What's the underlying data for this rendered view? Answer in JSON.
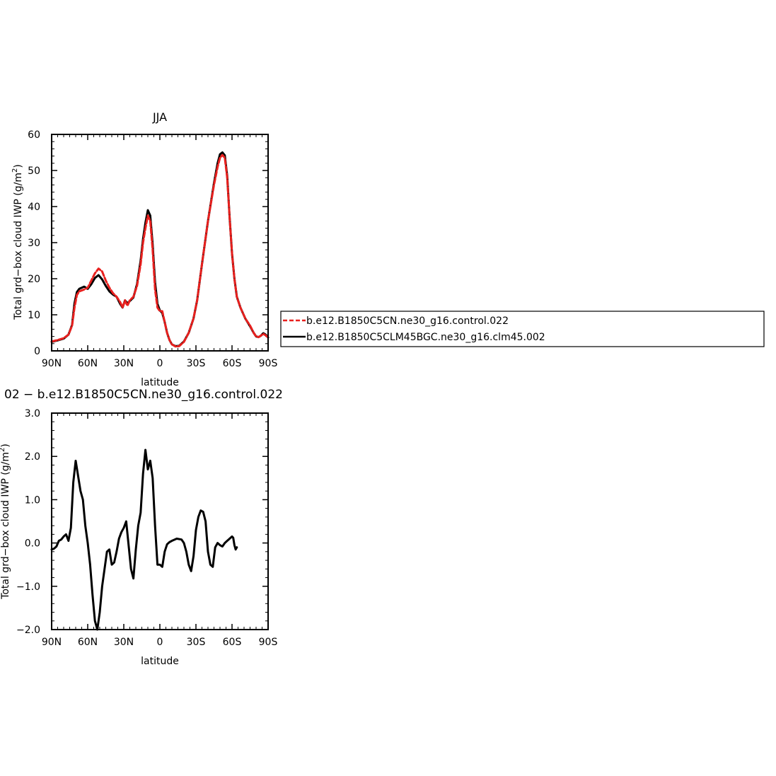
{
  "chart_data": [
    {
      "type": "line",
      "title": "JJA",
      "xlabel": "latitude",
      "ylabel": "Total grd−box cloud IWP (g/m²)",
      "xlim": [
        -90,
        90
      ],
      "ylim": [
        0,
        60
      ],
      "xticks": [
        -90,
        -60,
        -30,
        0,
        30,
        60,
        90
      ],
      "xtick_labels": [
        "90N",
        "60N",
        "30N",
        "0",
        "30S",
        "60S",
        "90S"
      ],
      "yticks": [
        0,
        10,
        20,
        30,
        40,
        50,
        60
      ],
      "ytick_labels": [
        "0",
        "10",
        "20",
        "30",
        "40",
        "50",
        "60"
      ],
      "legend_position": "right",
      "series": [
        {
          "name": "b.e12.B1850C5CN.ne30_g16.control.022",
          "color": "#e8201e",
          "dash": "dashed",
          "points": [
            [
              -90,
              2.6
            ],
            [
              -85,
              3.0
            ],
            [
              -80,
              3.5
            ],
            [
              -76,
              4.5
            ],
            [
              -73,
              7
            ],
            [
              -71,
              12
            ],
            [
              -69,
              15.5
            ],
            [
              -67,
              16.5
            ],
            [
              -63,
              17
            ],
            [
              -60,
              17.5
            ],
            [
              -57,
              19.5
            ],
            [
              -54,
              21.5
            ],
            [
              -51,
              22.8
            ],
            [
              -48,
              22
            ],
            [
              -45,
              19.5
            ],
            [
              -42,
              17.5
            ],
            [
              -39,
              16
            ],
            [
              -36,
              15
            ],
            [
              -33,
              13.5
            ],
            [
              -31,
              12
            ],
            [
              -29,
              14
            ],
            [
              -27,
              12.5
            ],
            [
              -25,
              14
            ],
            [
              -22,
              15
            ],
            [
              -19,
              18
            ],
            [
              -16,
              24
            ],
            [
              -14,
              30
            ],
            [
              -12,
              34
            ],
            [
              -10,
              37.5
            ],
            [
              -8,
              36
            ],
            [
              -6,
              28
            ],
            [
              -4,
              17
            ],
            [
              -2,
              12
            ],
            [
              0,
              11
            ],
            [
              2,
              11
            ],
            [
              4,
              8
            ],
            [
              6,
              5
            ],
            [
              8,
              3
            ],
            [
              10,
              1.8
            ],
            [
              13,
              1.2
            ],
            [
              16,
              1.3
            ],
            [
              20,
              2.5
            ],
            [
              24,
              5
            ],
            [
              28,
              9
            ],
            [
              31,
              14
            ],
            [
              35,
              24
            ],
            [
              40,
              36
            ],
            [
              45,
              46
            ],
            [
              48,
              51
            ],
            [
              50,
              53.5
            ],
            [
              52,
              54.3
            ],
            [
              54,
              53.5
            ],
            [
              56,
              48
            ],
            [
              58,
              37
            ],
            [
              60,
              27
            ],
            [
              62,
              20
            ],
            [
              64,
              15
            ],
            [
              67,
              12
            ],
            [
              71,
              9
            ],
            [
              75,
              7
            ],
            [
              78,
              5
            ],
            [
              80,
              4
            ],
            [
              82,
              3.8
            ],
            [
              84,
              4.2
            ],
            [
              86,
              4.7
            ],
            [
              88,
              4.3
            ],
            [
              90,
              3.7
            ]
          ]
        },
        {
          "name": "b.e12.B1850C5CLM45BGC.ne30_g16.clm45.002",
          "color": "#000000",
          "dash": "solid",
          "points": [
            [
              -90,
              2.5
            ],
            [
              -85,
              2.9
            ],
            [
              -80,
              3.4
            ],
            [
              -76,
              4.5
            ],
            [
              -73,
              7.2
            ],
            [
              -71,
              13.2
            ],
            [
              -69,
              16.3
            ],
            [
              -67,
              17.2
            ],
            [
              -63,
              17.8
            ],
            [
              -60,
              17.2
            ],
            [
              -57,
              18.5
            ],
            [
              -54,
              20.2
            ],
            [
              -51,
              21
            ],
            [
              -48,
              19.8
            ],
            [
              -45,
              18
            ],
            [
              -42,
              16.5
            ],
            [
              -39,
              15.6
            ],
            [
              -36,
              15
            ],
            [
              -33,
              13
            ],
            [
              -31,
              12
            ],
            [
              -29,
              14
            ],
            [
              -27,
              13.2
            ],
            [
              -25,
              13.8
            ],
            [
              -22,
              14.8
            ],
            [
              -19,
              18.5
            ],
            [
              -16,
              25
            ],
            [
              -14,
              31
            ],
            [
              -12,
              35.5
            ],
            [
              -10,
              39
            ],
            [
              -8,
              37.5
            ],
            [
              -6,
              29.5
            ],
            [
              -4,
              19
            ],
            [
              -2,
              13
            ],
            [
              0,
              11.2
            ],
            [
              2,
              10.5
            ],
            [
              4,
              8
            ],
            [
              6,
              5
            ],
            [
              8,
              3
            ],
            [
              10,
              1.8
            ],
            [
              13,
              1.3
            ],
            [
              16,
              1.4
            ],
            [
              20,
              2.6
            ],
            [
              24,
              5
            ],
            [
              28,
              9
            ],
            [
              31,
              14
            ],
            [
              35,
              24
            ],
            [
              40,
              36
            ],
            [
              45,
              46.5
            ],
            [
              48,
              52
            ],
            [
              50,
              54.5
            ],
            [
              52,
              55
            ],
            [
              54,
              54.2
            ],
            [
              56,
              48.5
            ],
            [
              58,
              37
            ],
            [
              60,
              27
            ],
            [
              62,
              20
            ],
            [
              64,
              15
            ],
            [
              67,
              12
            ],
            [
              71,
              9
            ],
            [
              75,
              6.8
            ],
            [
              78,
              5
            ],
            [
              80,
              4
            ],
            [
              82,
              3.8
            ],
            [
              84,
              4.2
            ],
            [
              86,
              4.9
            ],
            [
              88,
              4.5
            ],
            [
              90,
              3.7
            ]
          ]
        }
      ]
    },
    {
      "type": "line",
      "title": "02 − b.e12.B1850C5CN.ne30_g16.control.022",
      "xlabel": "latitude",
      "ylabel": "Total grd−box cloud IWP (g/m²)",
      "xlim": [
        -90,
        90
      ],
      "ylim": [
        -2.0,
        3.0
      ],
      "xticks": [
        -90,
        -60,
        -30,
        0,
        30,
        60,
        90
      ],
      "xtick_labels": [
        "90N",
        "60N",
        "30N",
        "0",
        "30S",
        "60S",
        "90S"
      ],
      "yticks": [
        -2,
        -1,
        0,
        1,
        2,
        3
      ],
      "ytick_labels": [
        "−2.0",
        "−1.0",
        "0.0",
        "1.0",
        "2.0",
        "3.0"
      ],
      "series": [
        {
          "color": "#000000",
          "points": [
            [
              -90,
              -0.15
            ],
            [
              -88,
              -0.13
            ],
            [
              -86,
              -0.08
            ],
            [
              -84,
              0.05
            ],
            [
              -82,
              0.08
            ],
            [
              -80,
              0.15
            ],
            [
              -78,
              0.2
            ],
            [
              -76,
              0.05
            ],
            [
              -74,
              0.35
            ],
            [
              -72,
              1.4
            ],
            [
              -70,
              1.9
            ],
            [
              -68,
              1.55
            ],
            [
              -66,
              1.2
            ],
            [
              -64,
              1.0
            ],
            [
              -62,
              0.4
            ],
            [
              -60,
              0.0
            ],
            [
              -58,
              -0.5
            ],
            [
              -56,
              -1.2
            ],
            [
              -54,
              -1.8
            ],
            [
              -52,
              -2.0
            ],
            [
              -50,
              -1.6
            ],
            [
              -48,
              -1.0
            ],
            [
              -46,
              -0.6
            ],
            [
              -44,
              -0.2
            ],
            [
              -42,
              -0.15
            ],
            [
              -40,
              -0.5
            ],
            [
              -38,
              -0.45
            ],
            [
              -36,
              -0.2
            ],
            [
              -34,
              0.1
            ],
            [
              -32,
              0.25
            ],
            [
              -30,
              0.35
            ],
            [
              -28,
              0.5
            ],
            [
              -26,
              -0.05
            ],
            [
              -24,
              -0.6
            ],
            [
              -22,
              -0.82
            ],
            [
              -20,
              -0.15
            ],
            [
              -18,
              0.4
            ],
            [
              -16,
              0.7
            ],
            [
              -14,
              1.6
            ],
            [
              -12,
              2.15
            ],
            [
              -10,
              1.7
            ],
            [
              -8,
              1.9
            ],
            [
              -6,
              1.5
            ],
            [
              -4,
              0.4
            ],
            [
              -2,
              -0.5
            ],
            [
              0,
              -0.5
            ],
            [
              2,
              -0.55
            ],
            [
              4,
              -0.2
            ],
            [
              6,
              -0.03
            ],
            [
              8,
              0.02
            ],
            [
              10,
              0.05
            ],
            [
              14,
              0.1
            ],
            [
              18,
              0.08
            ],
            [
              20,
              0.0
            ],
            [
              22,
              -0.2
            ],
            [
              24,
              -0.5
            ],
            [
              26,
              -0.65
            ],
            [
              28,
              -0.3
            ],
            [
              30,
              0.3
            ],
            [
              32,
              0.6
            ],
            [
              34,
              0.75
            ],
            [
              36,
              0.72
            ],
            [
              38,
              0.5
            ],
            [
              40,
              -0.2
            ],
            [
              42,
              -0.5
            ],
            [
              44,
              -0.55
            ],
            [
              46,
              -0.1
            ],
            [
              48,
              0.0
            ],
            [
              50,
              -0.05
            ],
            [
              52,
              -0.08
            ],
            [
              54,
              0.0
            ],
            [
              56,
              0.05
            ],
            [
              58,
              0.1
            ],
            [
              60,
              0.15
            ],
            [
              61,
              0.12
            ],
            [
              62,
              -0.05
            ],
            [
              63,
              -0.15
            ],
            [
              64,
              -0.1
            ]
          ]
        }
      ]
    }
  ]
}
